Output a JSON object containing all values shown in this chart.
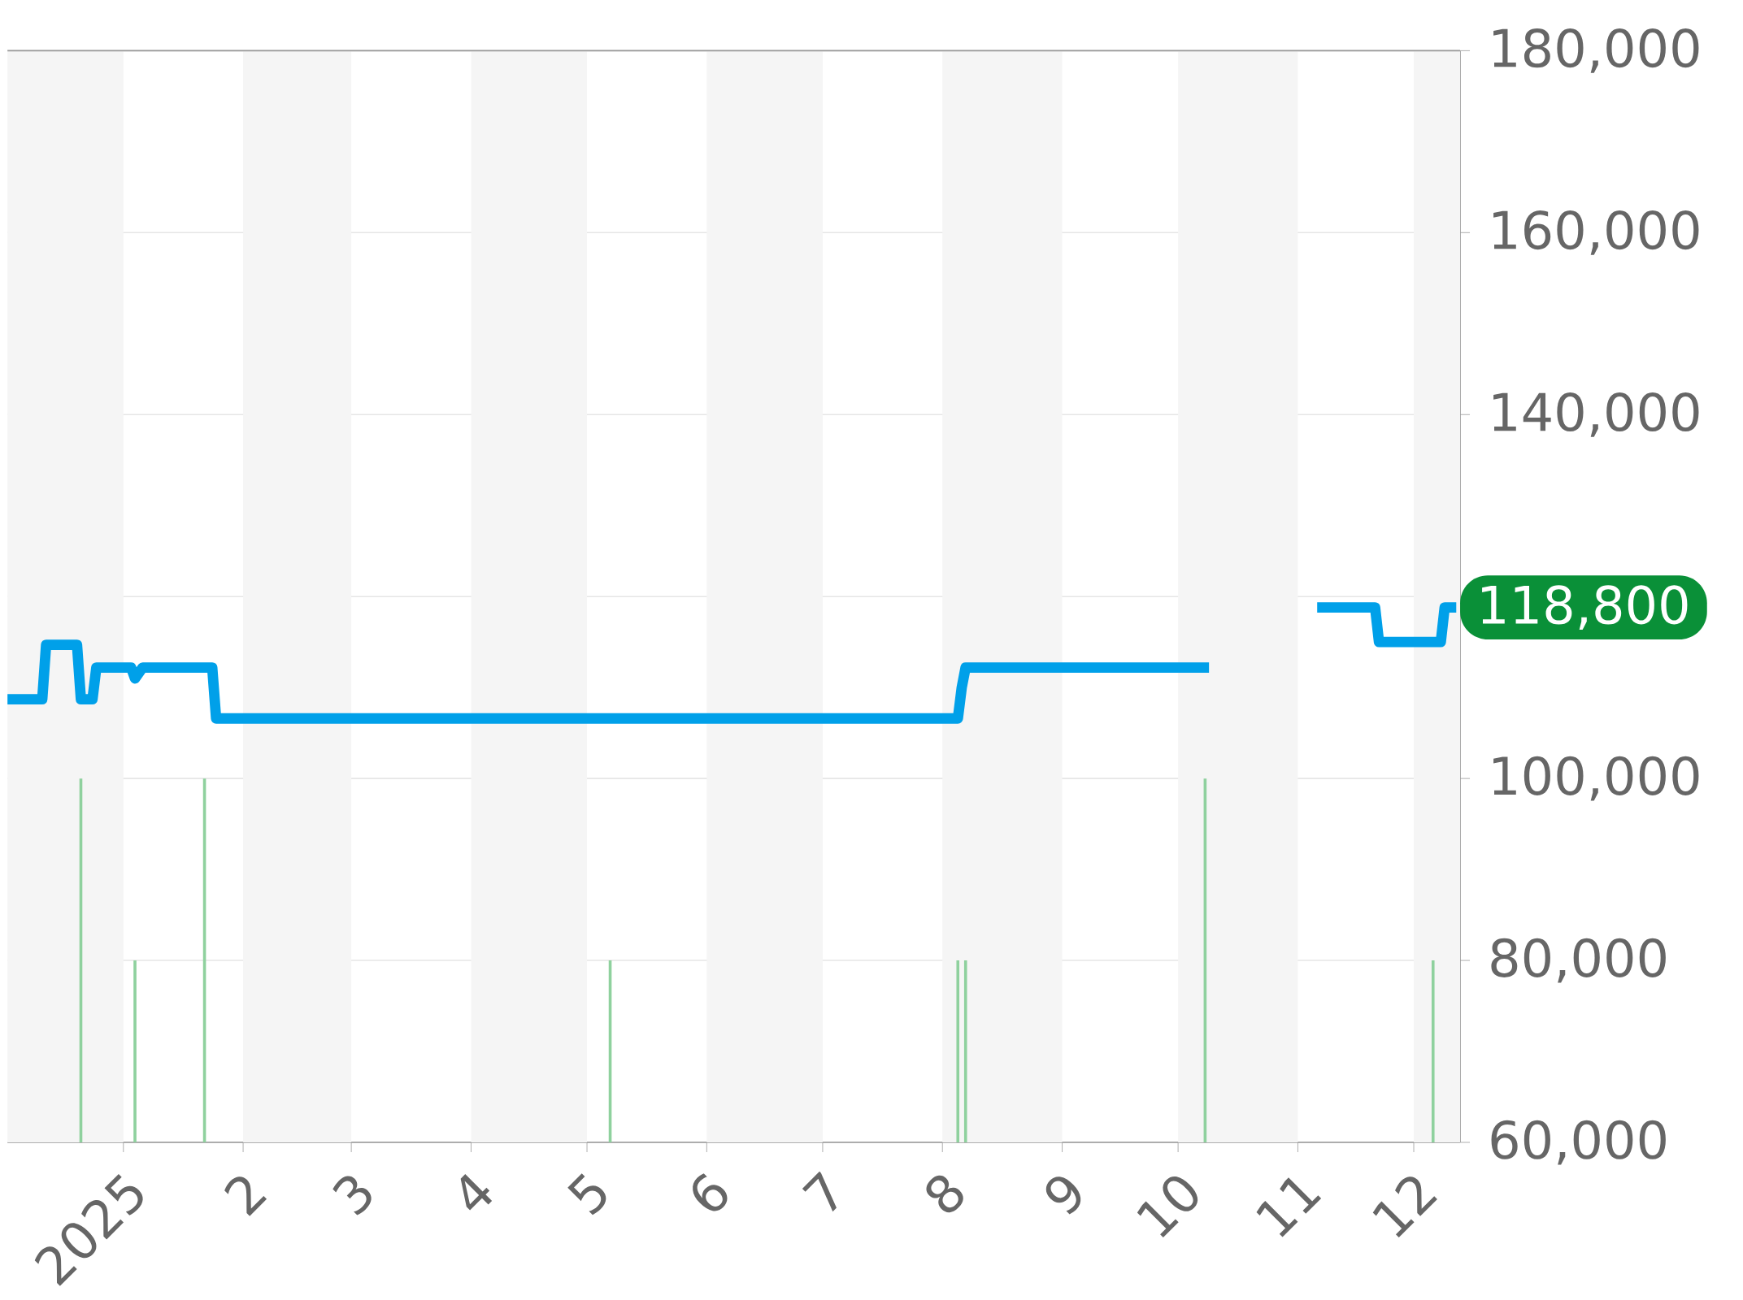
{
  "chart_data": {
    "type": "line",
    "xlim": [
      "2024-12-02",
      "2025-12-13"
    ],
    "ylim": [
      60000,
      180000
    ],
    "xticks": [
      {
        "value": "2025-01-01",
        "label": "2025"
      },
      {
        "value": "2025-02-01",
        "label": "2"
      },
      {
        "value": "2025-03-01",
        "label": "3"
      },
      {
        "value": "2025-04-01",
        "label": "4"
      },
      {
        "value": "2025-05-01",
        "label": "5"
      },
      {
        "value": "2025-06-01",
        "label": "6"
      },
      {
        "value": "2025-07-01",
        "label": "7"
      },
      {
        "value": "2025-08-01",
        "label": "8"
      },
      {
        "value": "2025-09-01",
        "label": "9"
      },
      {
        "value": "2025-10-01",
        "label": "10"
      },
      {
        "value": "2025-11-01",
        "label": "11"
      },
      {
        "value": "2025-12-01",
        "label": "12"
      }
    ],
    "yticks": [
      {
        "value": 60000,
        "label": "60,000"
      },
      {
        "value": 80000,
        "label": "80,000"
      },
      {
        "value": 100000,
        "label": "100,000"
      },
      {
        "value": 120000,
        "label": null
      },
      {
        "value": 140000,
        "label": "140,000"
      },
      {
        "value": 160000,
        "label": "160,000"
      },
      {
        "value": 180000,
        "label": "180,000"
      }
    ],
    "grid": "y",
    "bands": [
      {
        "axis": "x",
        "from": "2024-12-02",
        "to": "2025-01-01",
        "color": "#f5f5f5"
      },
      {
        "axis": "x",
        "from": "2025-02-01",
        "to": "2025-03-01",
        "color": "#f5f5f5"
      },
      {
        "axis": "x",
        "from": "2025-04-01",
        "to": "2025-05-01",
        "color": "#f5f5f5"
      },
      {
        "axis": "x",
        "from": "2025-06-01",
        "to": "2025-07-01",
        "color": "#f5f5f5"
      },
      {
        "axis": "x",
        "from": "2025-08-01",
        "to": "2025-09-01",
        "color": "#f5f5f5"
      },
      {
        "axis": "x",
        "from": "2025-10-01",
        "to": "2025-11-01",
        "color": "#f5f5f5"
      },
      {
        "axis": "x",
        "from": "2025-12-01",
        "to": "2025-12-13",
        "color": "#f5f5f5"
      }
    ],
    "series": [
      {
        "type": "bar",
        "color": "#8fd19e",
        "x": [
          "2024-12-21",
          "2025-01-04",
          "2025-01-22",
          "2025-05-07",
          "2025-08-05",
          "2025-08-07",
          "2025-10-08",
          "2025-12-06"
        ],
        "values": [
          100000,
          80000,
          100000,
          80000,
          80000,
          80000,
          100000,
          80000
        ]
      },
      {
        "color": "#00a0e9",
        "x": [
          "2024-12-02",
          "2024-12-11",
          "2024-12-12",
          "2024-12-20",
          "2024-12-21",
          "2024-12-24",
          "2024-12-25",
          "2025-01-03",
          "2025-01-04",
          "2025-01-06",
          "2025-01-24",
          "2025-01-25",
          "2025-08-05",
          "2025-08-06",
          "2025-08-07",
          "2025-10-09",
          "2025-10-20",
          "2025-11-06",
          "2025-11-21",
          "2025-11-22",
          "2025-12-08",
          "2025-12-09",
          "2025-12-12"
        ],
        "values": [
          108700,
          108700,
          114700,
          114700,
          108700,
          108700,
          112200,
          112200,
          111000,
          112200,
          112200,
          106600,
          106600,
          110000,
          112200,
          112200,
          null,
          118800,
          118800,
          115000,
          115000,
          118800,
          118800
        ]
      }
    ],
    "annotations": [
      {
        "text": "118,800",
        "x": "2025-12-12",
        "y": 118800
      }
    ]
  }
}
